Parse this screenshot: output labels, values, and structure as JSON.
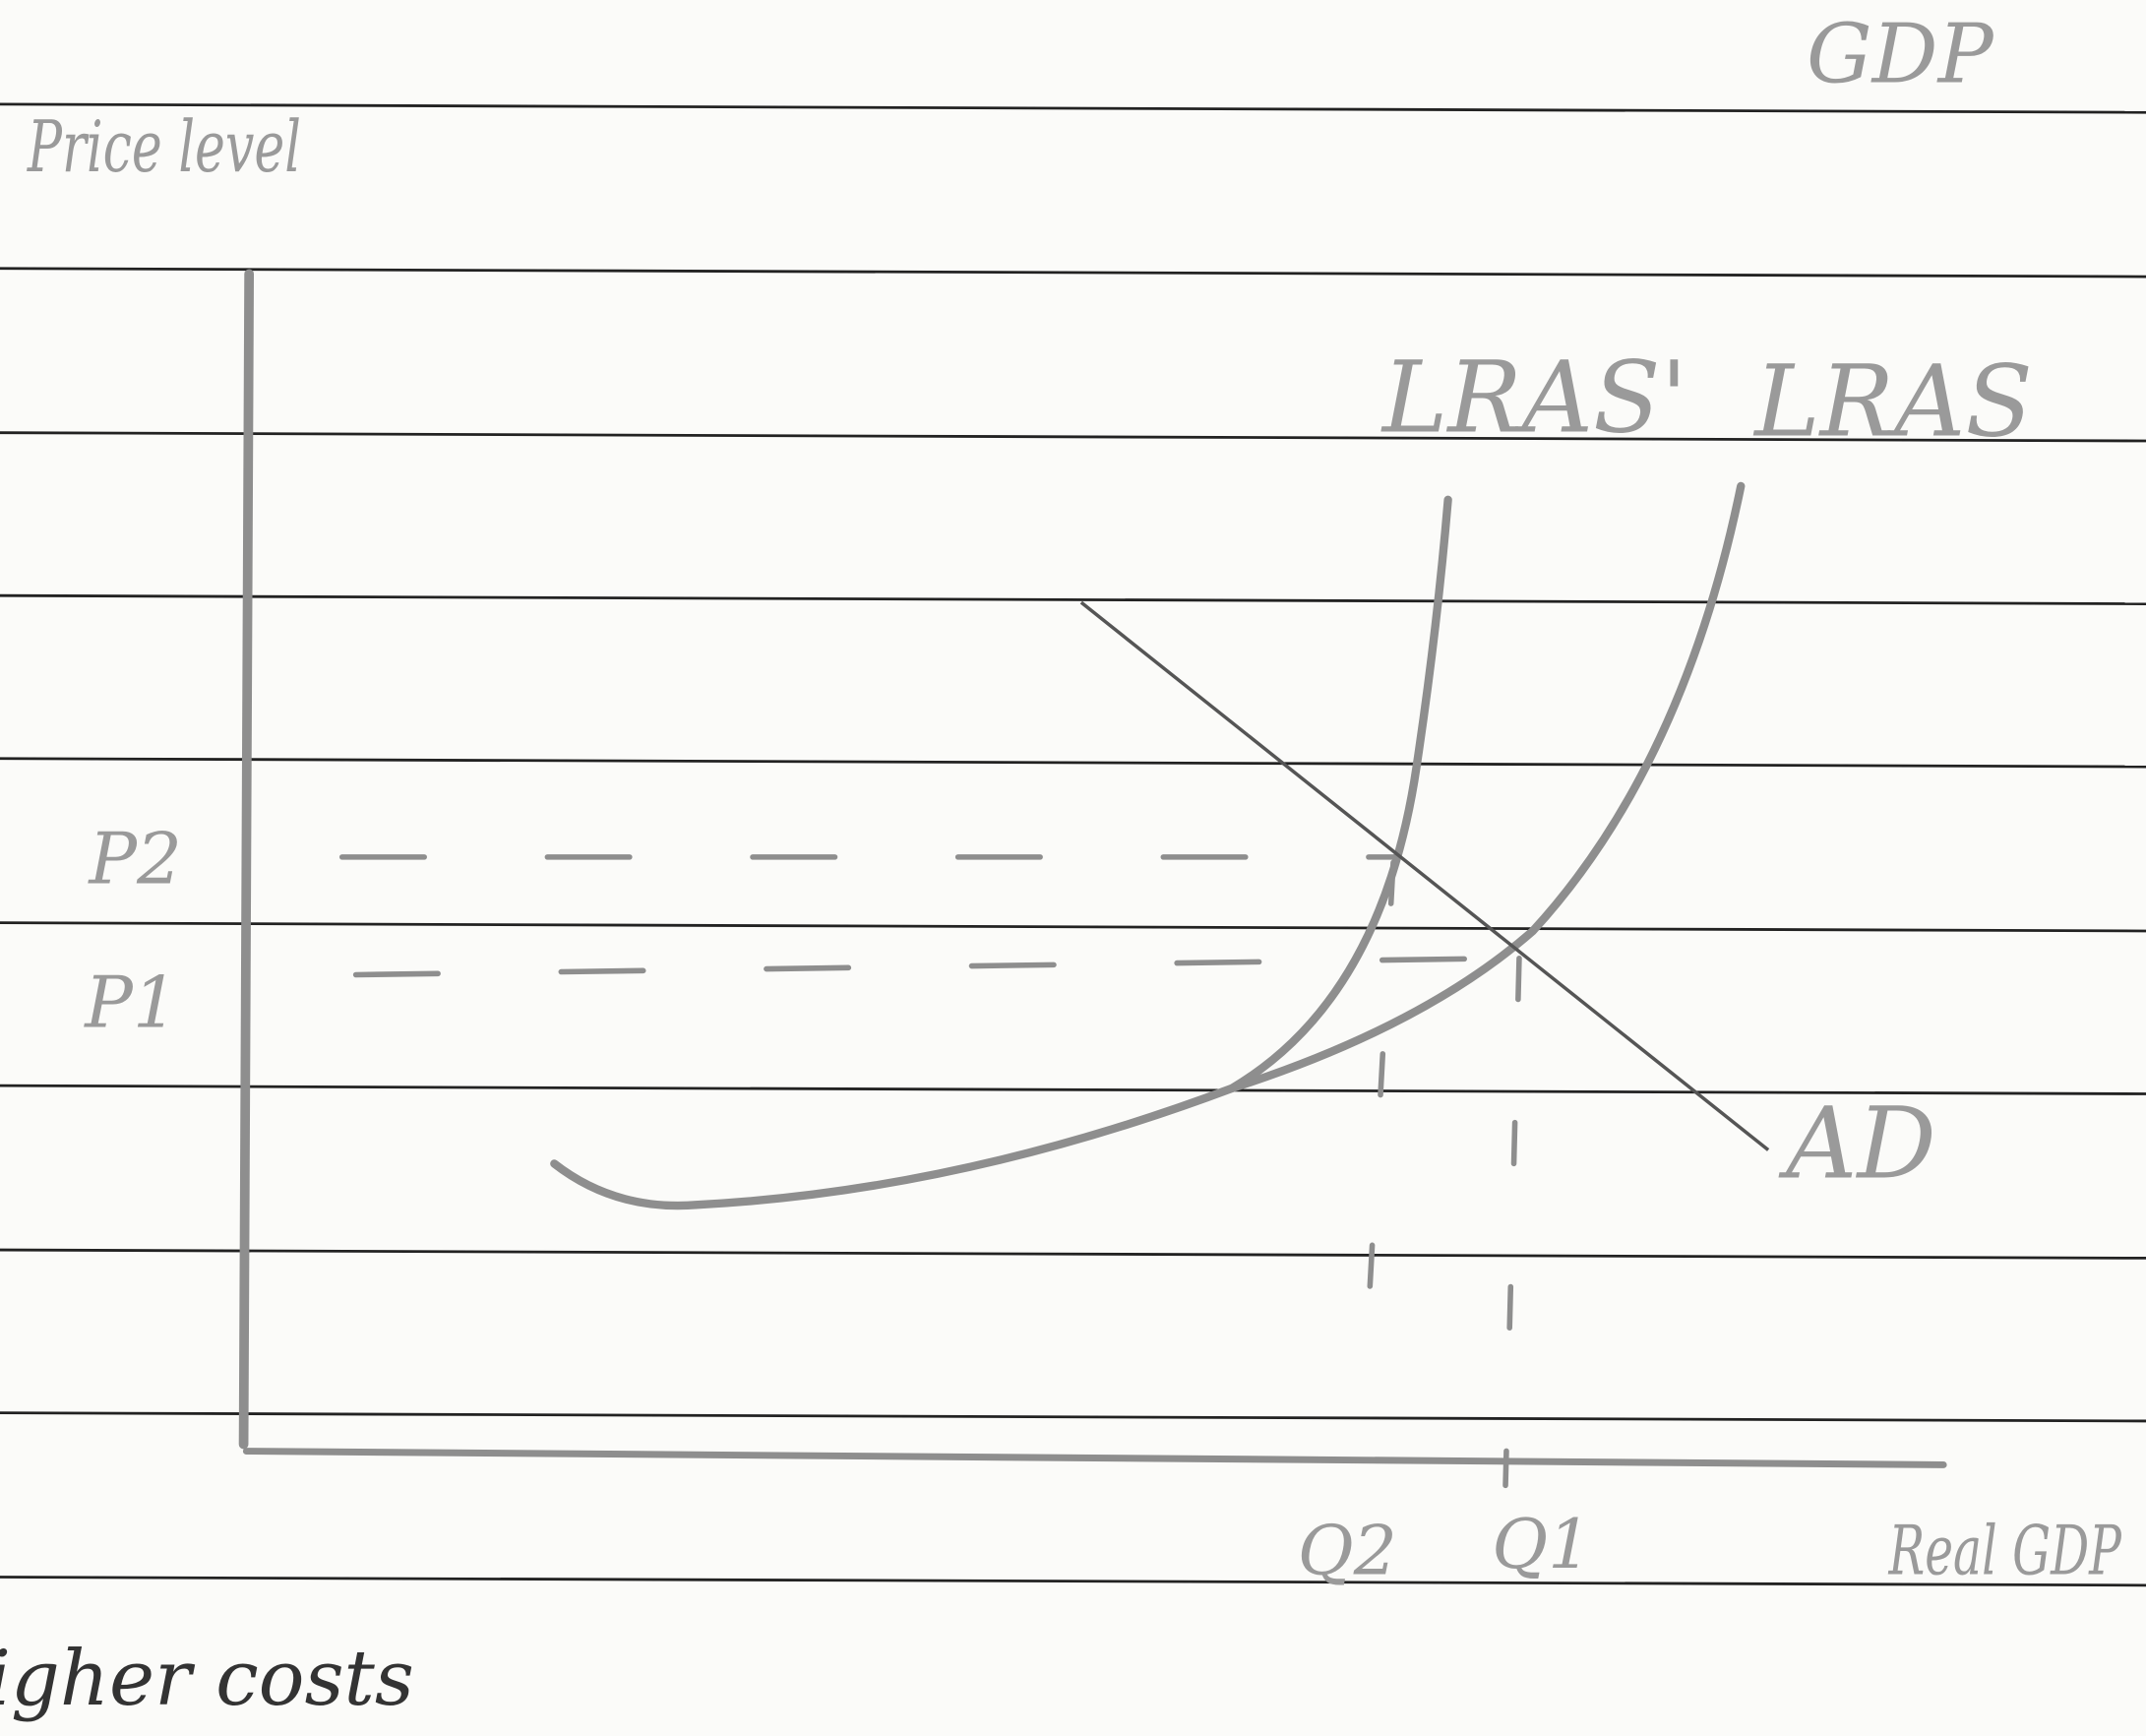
{
  "labels": {
    "y_axis": "Price level",
    "top_right": "GDP",
    "x_axis": "Real GDP",
    "lras_shifted": "LRAS'",
    "lras": "LRAS",
    "ad": "AD",
    "p2": "P2",
    "p1": "P1",
    "q2": "Q2",
    "q1": "Q1",
    "note": "igher costs"
  }
}
